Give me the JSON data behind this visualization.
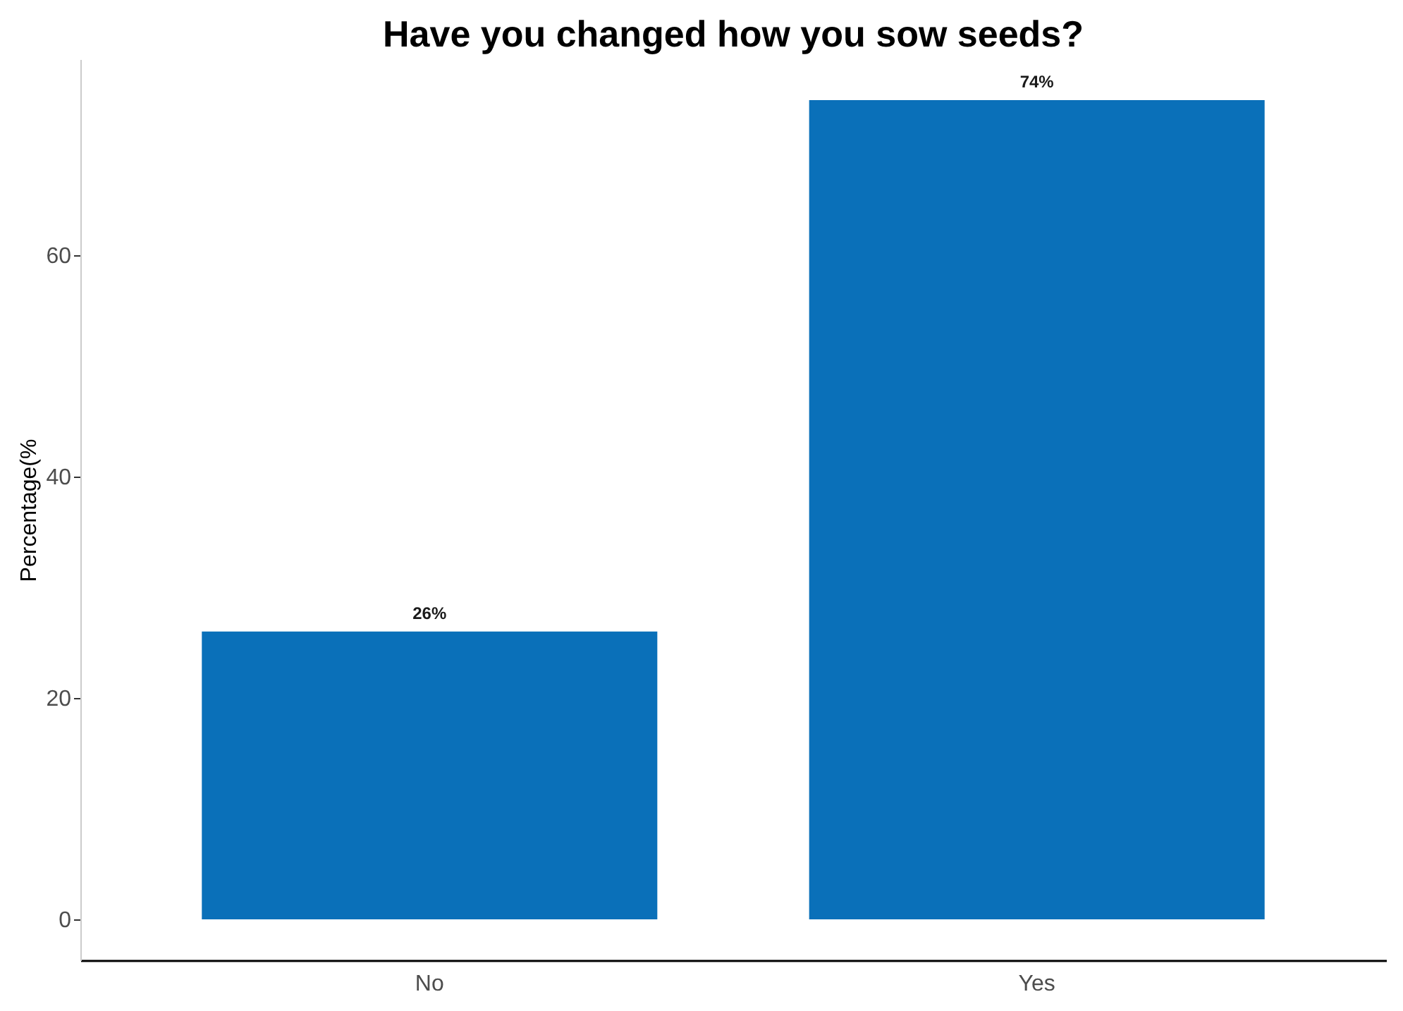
{
  "chart_data": {
    "type": "bar",
    "title": "Have you changed how you sow seeds?",
    "ylabel": "Percentage(%",
    "categories": [
      "No",
      "Yes"
    ],
    "values": [
      26,
      74
    ],
    "color": "#0a70b9",
    "value_labels": [
      "26%",
      "74%"
    ],
    "ylim": [
      -3.7,
      77.7
    ],
    "yticks": [
      0,
      20,
      40,
      60
    ],
    "grid": false
  }
}
